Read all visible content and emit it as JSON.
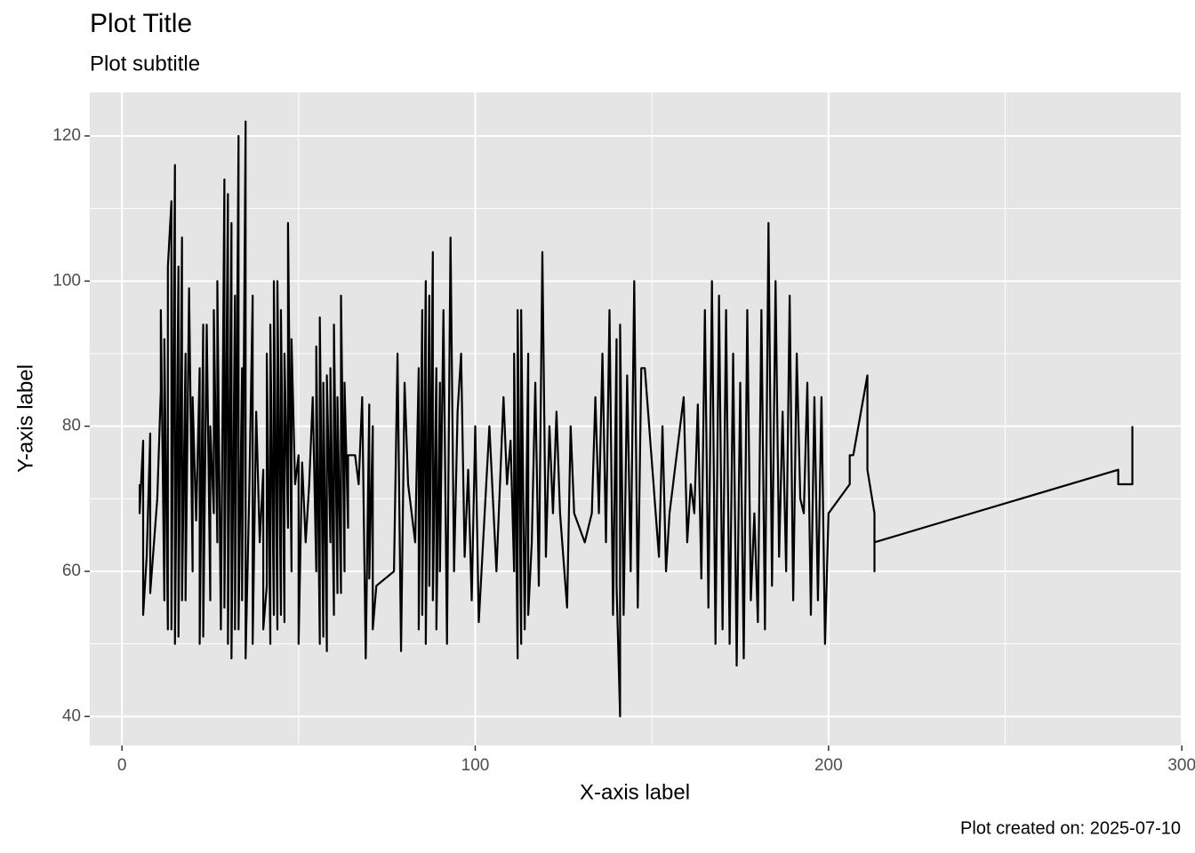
{
  "chart_data": {
    "type": "line",
    "title": "Plot Title",
    "subtitle": "Plot subtitle",
    "x_label": "X-axis label",
    "y_label": "Y-axis label",
    "caption": "Plot created on: 2025-07-10",
    "xlim": [
      -9.1,
      299.7
    ],
    "ylim": [
      36,
      126
    ],
    "xticks": [
      0,
      100,
      200,
      300
    ],
    "yticks": [
      40,
      60,
      80,
      100,
      120
    ],
    "xminor": [
      50,
      150,
      250
    ],
    "yminor": [
      50,
      70,
      90,
      110
    ],
    "grid": true,
    "series": [
      {
        "color": "#000000",
        "x": [
          5,
          5,
          6,
          6,
          7,
          8,
          8,
          10,
          11,
          11,
          12,
          12,
          13,
          13,
          14,
          14,
          15,
          15,
          16,
          16,
          17,
          17,
          18,
          18,
          19,
          20,
          20,
          21,
          22,
          22,
          23,
          23,
          24,
          25,
          25,
          26,
          26,
          27,
          27,
          28,
          29,
          29,
          30,
          30,
          31,
          31,
          32,
          32,
          33,
          33,
          34,
          34,
          35,
          35,
          36,
          37,
          37,
          38,
          39,
          40,
          40,
          41,
          41,
          42,
          42,
          43,
          43,
          44,
          44,
          45,
          45,
          46,
          46,
          47,
          47,
          48,
          48,
          49,
          50,
          50,
          51,
          52,
          53,
          54,
          55,
          55,
          56,
          56,
          57,
          57,
          58,
          58,
          59,
          59,
          60,
          60,
          61,
          61,
          62,
          62,
          63,
          63,
          64,
          64,
          65,
          66,
          67,
          68,
          69,
          70,
          70,
          71,
          71,
          72,
          77,
          78,
          79,
          80,
          81,
          82,
          83,
          84,
          84,
          85,
          85,
          86,
          86,
          87,
          87,
          88,
          88,
          89,
          89,
          90,
          90,
          91,
          92,
          93,
          94,
          95,
          96,
          97,
          98,
          99,
          100,
          101,
          104,
          106,
          107,
          108,
          109,
          110,
          111,
          111,
          112,
          112,
          113,
          113,
          114,
          115,
          115,
          116,
          117,
          118,
          119,
          120,
          121,
          122,
          123,
          124,
          126,
          127,
          128,
          131,
          133,
          134,
          135,
          136,
          137,
          138,
          139,
          140,
          140,
          141,
          141,
          142,
          143,
          144,
          145,
          146,
          147,
          148,
          152,
          153,
          154,
          155,
          159,
          160,
          161,
          162,
          163,
          164,
          165,
          166,
          167,
          168,
          169,
          170,
          171,
          172,
          173,
          174,
          175,
          176,
          177,
          178,
          179,
          180,
          181,
          182,
          183,
          184,
          185,
          186,
          187,
          188,
          189,
          190,
          191,
          192,
          193,
          194,
          195,
          196,
          197,
          198,
          199,
          200,
          206,
          206,
          207,
          211,
          211,
          213,
          213,
          213,
          282,
          282,
          286,
          286
        ],
        "values": [
          72,
          68,
          78,
          54,
          62,
          79,
          57,
          70,
          85,
          96,
          56,
          92,
          52,
          102,
          111,
          52,
          116,
          50,
          102,
          51,
          106,
          56,
          90,
          56,
          99,
          60,
          84,
          67,
          88,
          50,
          94,
          51,
          94,
          56,
          80,
          68,
          96,
          64,
          100,
          52,
          114,
          55,
          112,
          50,
          108,
          48,
          98,
          52,
          120,
          52,
          88,
          56,
          122,
          48,
          70,
          98,
          50,
          82,
          64,
          74,
          52,
          58,
          90,
          50,
          94,
          54,
          100,
          52,
          100,
          54,
          96,
          53,
          90,
          66,
          108,
          60,
          92,
          72,
          76,
          50,
          75,
          64,
          72,
          84,
          60,
          91,
          50,
          95,
          51,
          86,
          49,
          87,
          64,
          88,
          54,
          94,
          57,
          84,
          57,
          98,
          60,
          86,
          66,
          76,
          76,
          76,
          72,
          84,
          48,
          83,
          59,
          80,
          52,
          58,
          60,
          90,
          49,
          86,
          72,
          68,
          64,
          88,
          52,
          96,
          54,
          100,
          50,
          98,
          58,
          104,
          56,
          88,
          52,
          86,
          60,
          96,
          50,
          106,
          60,
          82,
          90,
          62,
          74,
          56,
          80,
          53,
          80,
          60,
          72,
          84,
          72,
          78,
          60,
          90,
          48,
          96,
          50,
          96,
          52,
          90,
          54,
          64,
          86,
          58,
          104,
          62,
          80,
          68,
          82,
          68,
          55,
          80,
          68,
          64,
          68,
          84,
          68,
          90,
          64,
          96,
          54,
          92,
          58,
          40,
          94,
          54,
          87,
          60,
          100,
          55,
          88,
          88,
          62,
          80,
          60,
          68,
          84,
          64,
          72,
          68,
          83,
          59,
          96,
          55,
          100,
          50,
          98,
          52,
          96,
          50,
          90,
          47,
          86,
          48,
          96,
          56,
          68,
          53,
          96,
          52,
          108,
          58,
          100,
          62,
          82,
          60,
          98,
          56,
          90,
          70,
          68,
          86,
          54,
          84,
          56,
          84,
          50,
          68,
          72,
          76,
          76,
          87,
          74,
          68,
          60,
          64,
          74,
          72,
          72,
          80
        ]
      }
    ]
  }
}
